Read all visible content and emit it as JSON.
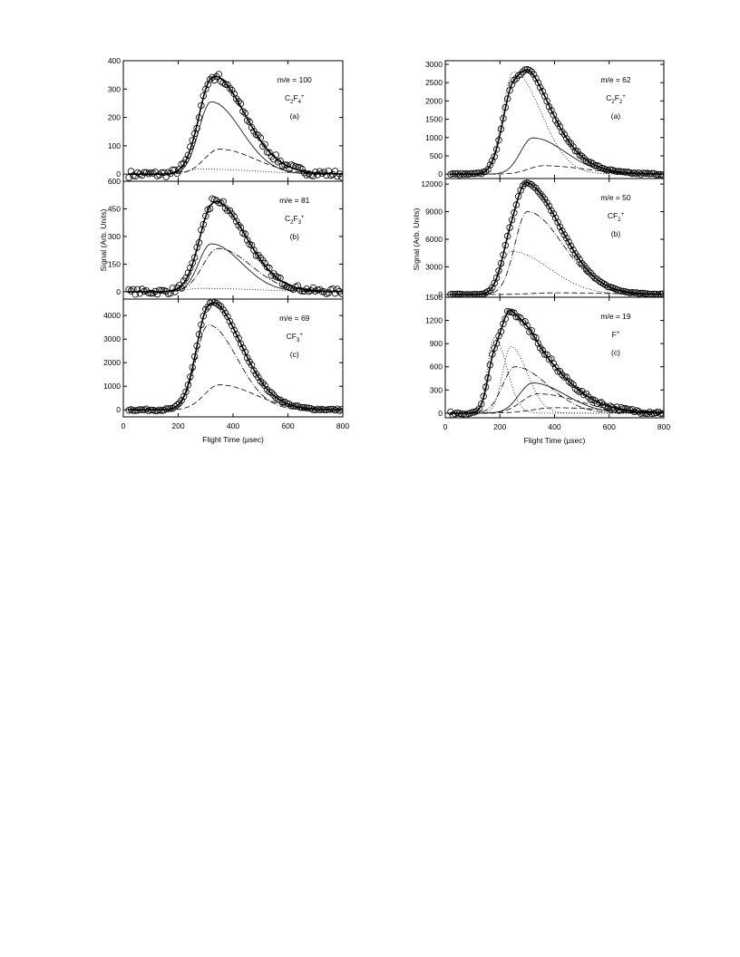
{
  "chart_data": [
    {
      "type": "line",
      "group": "left",
      "panel_tag": "(a)",
      "mass_label": "m/e = 100",
      "ion": {
        "base": "C",
        "sub1": "2",
        "mid": "F",
        "sub2": "4",
        "sup": "+"
      },
      "xlim": [
        0,
        800
      ],
      "ylim": [
        -25,
        400
      ],
      "yticks": [
        0,
        100,
        200,
        300,
        400
      ],
      "xlabel": "",
      "ylabel": "Signal (Arb. Units)",
      "peaks": [
        {
          "style": "solid",
          "amp": 255,
          "center": 320,
          "w1": 45,
          "w2": 110
        },
        {
          "style": "dashed",
          "amp": 88,
          "center": 350,
          "w1": 55,
          "w2": 130
        },
        {
          "style": "dotted",
          "amp": 18,
          "center": 280,
          "w1": 50,
          "w2": 200
        }
      ],
      "total_amp": 345,
      "noise": 12
    },
    {
      "type": "line",
      "group": "left",
      "panel_tag": "(b)",
      "mass_label": "m/e = 81",
      "ion": {
        "base": "C",
        "sub1": "2",
        "mid": "F",
        "sub2": "3",
        "sup": "+"
      },
      "xlim": [
        0,
        800
      ],
      "ylim": [
        -40,
        600
      ],
      "yticks": [
        0,
        150,
        300,
        450,
        600
      ],
      "xlabel": "",
      "ylabel": "Signal (Arb. Units)",
      "peaks": [
        {
          "style": "solid",
          "amp": 260,
          "center": 320,
          "w1": 45,
          "w2": 110
        },
        {
          "style": "dashdot",
          "amp": 235,
          "center": 345,
          "w1": 55,
          "w2": 120
        },
        {
          "style": "dotted",
          "amp": 18,
          "center": 280,
          "w1": 50,
          "w2": 200
        }
      ],
      "total_amp": 490,
      "noise": 15
    },
    {
      "type": "line",
      "group": "left",
      "panel_tag": "(c)",
      "mass_label": "m/e = 69",
      "ion": {
        "base": "CF",
        "sub1": "3",
        "mid": "",
        "sub2": "",
        "sup": "+"
      },
      "xlim": [
        0,
        800
      ],
      "ylim": [
        -300,
        4700
      ],
      "yticks": [
        0,
        1000,
        2000,
        3000,
        4000
      ],
      "xticks": [
        0,
        200,
        400,
        600,
        800
      ],
      "xlabel": "Flight Time (µsec)",
      "ylabel": "Signal (Arb. Units)",
      "peaks": [
        {
          "style": "dashdot",
          "amp": 3600,
          "center": 310,
          "w1": 45,
          "w2": 105
        },
        {
          "style": "dashed",
          "amp": 1060,
          "center": 350,
          "w1": 55,
          "w2": 130
        }
      ],
      "total_amp": 4550,
      "noise": 40
    },
    {
      "type": "line",
      "group": "right",
      "panel_tag": "(a)",
      "mass_label": "m/e = 62",
      "ion": {
        "base": "C",
        "sub1": "2",
        "mid": "F",
        "sub2": "2",
        "sup": "+"
      },
      "xlim": [
        0,
        800
      ],
      "ylim": [
        -120,
        3100
      ],
      "yticks": [
        0,
        500,
        1000,
        1500,
        2000,
        2500,
        3000
      ],
      "xlabel": "",
      "ylabel": "Signal (Arb. Units)",
      "peaks": [
        {
          "style": "dotted",
          "amp": 2800,
          "center": 250,
          "w1": 40,
          "w2": 100
        },
        {
          "style": "solid",
          "amp": 990,
          "center": 320,
          "w1": 45,
          "w2": 120
        },
        {
          "style": "dashed",
          "amp": 230,
          "center": 360,
          "w1": 55,
          "w2": 150
        }
      ],
      "total_amp": 2850,
      "noise": 25
    },
    {
      "type": "line",
      "group": "right",
      "panel_tag": "(b)",
      "mass_label": "m/e = 50",
      "ion": {
        "base": "CF",
        "sub1": "2",
        "mid": "",
        "sub2": "",
        "sup": "+"
      },
      "xlim": [
        0,
        800
      ],
      "ylim": [
        -300,
        12600
      ],
      "yticks": [
        0,
        3000,
        6000,
        9000,
        12000
      ],
      "xlabel": "",
      "ylabel": "Signal (Arb. Units)",
      "peaks": [
        {
          "style": "dashdot",
          "amp": 9000,
          "center": 300,
          "w1": 45,
          "w2": 130
        },
        {
          "style": "dotted",
          "amp": 4700,
          "center": 240,
          "w1": 35,
          "w2": 140
        },
        {
          "style": "dashed",
          "amp": 180,
          "center": 400,
          "w1": 80,
          "w2": 200
        }
      ],
      "total_amp": 12200,
      "noise": 60
    },
    {
      "type": "line",
      "group": "right",
      "panel_tag": "(c)",
      "mass_label": "m/e = 19",
      "ion": {
        "base": "F",
        "sub1": "",
        "mid": "",
        "sub2": "",
        "sup": "+"
      },
      "xlim": [
        0,
        800
      ],
      "ylim": [
        -60,
        1500
      ],
      "yticks": [
        0,
        300,
        600,
        900,
        1200,
        1500
      ],
      "xticks": [
        0,
        200,
        400,
        600,
        800
      ],
      "xlabel": "Flight Time (µsec)",
      "ylabel": "Signal (Arb. Units)",
      "peaks": [
        {
          "style": "dotted",
          "amp": 980,
          "center": 180,
          "w1": 25,
          "w2": 45
        },
        {
          "style": "dotted",
          "amp": 860,
          "center": 240,
          "w1": 30,
          "w2": 60
        },
        {
          "style": "dashdot",
          "amp": 600,
          "center": 255,
          "w1": 45,
          "w2": 120
        },
        {
          "style": "solid",
          "amp": 390,
          "center": 320,
          "w1": 50,
          "w2": 120
        },
        {
          "style": "dashed",
          "amp": 250,
          "center": 340,
          "w1": 60,
          "w2": 150
        },
        {
          "style": "dashed",
          "amp": 70,
          "center": 400,
          "w1": 80,
          "w2": 200
        }
      ],
      "total_amp": 1330,
      "noise": 25
    }
  ]
}
